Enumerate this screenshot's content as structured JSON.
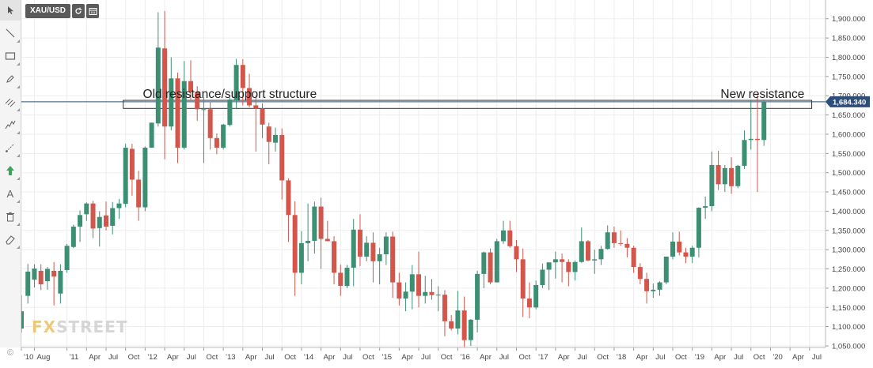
{
  "toolbar": {
    "tools": [
      {
        "name": "cursor-icon",
        "active": true
      },
      {
        "name": "line-icon"
      },
      {
        "name": "rectangle-icon"
      },
      {
        "name": "pencil-icon"
      },
      {
        "name": "parallel-channel-icon"
      },
      {
        "name": "pitchfork-icon"
      },
      {
        "name": "ray-icon"
      },
      {
        "name": "arrow-up-icon"
      },
      {
        "name": "text-icon"
      },
      {
        "name": "trash-icon"
      },
      {
        "name": "eraser-icon"
      }
    ]
  },
  "header": {
    "symbol": "XAU/USD"
  },
  "watermark": {
    "fx": "FX",
    "street": "STREET"
  },
  "copyright": "©",
  "colors": {
    "up": "#3d8f74",
    "down": "#d2564b",
    "grid": "#ededed",
    "price_tag": "#2d4e7a",
    "annotation": "#222222"
  },
  "chart_data": {
    "type": "candlestick",
    "interval": "monthly",
    "ylim": [
      1050,
      1920
    ],
    "y_ticks": [
      1050,
      1100,
      1150,
      1200,
      1250,
      1300,
      1350,
      1400,
      1450,
      1500,
      1550,
      1600,
      1650,
      1700,
      1750,
      1800,
      1850,
      1900
    ],
    "y_tick_labels": [
      "1,050.000",
      "1,100.000",
      "1,150.000",
      "1,200.000",
      "1,250.000",
      "1,300.000",
      "1,350.000",
      "1,400.000",
      "1,450.000",
      "1,500.000",
      "1,550.000",
      "1,600.000",
      "1,650.000",
      "1,700.000",
      "1,750.000",
      "1,800.000",
      "1,850.000",
      "1,900.000"
    ],
    "x_labels": [
      {
        "label": "'10",
        "index": 0
      },
      {
        "label": "Aug",
        "index": 2
      },
      {
        "label": "'11",
        "index": 7
      },
      {
        "label": "Apr",
        "index": 10
      },
      {
        "label": "Jul",
        "index": 13
      },
      {
        "label": "Oct",
        "index": 16
      },
      {
        "label": "'12",
        "index": 19
      },
      {
        "label": "Apr",
        "index": 22
      },
      {
        "label": "Jul",
        "index": 25
      },
      {
        "label": "Oct",
        "index": 28
      },
      {
        "label": "'13",
        "index": 31
      },
      {
        "label": "Apr",
        "index": 34
      },
      {
        "label": "Jul",
        "index": 37
      },
      {
        "label": "Oct",
        "index": 40
      },
      {
        "label": "'14",
        "index": 43
      },
      {
        "label": "Apr",
        "index": 46
      },
      {
        "label": "Jul",
        "index": 49
      },
      {
        "label": "Oct",
        "index": 52
      },
      {
        "label": "'15",
        "index": 55
      },
      {
        "label": "Apr",
        "index": 58
      },
      {
        "label": "Jul",
        "index": 61
      },
      {
        "label": "Oct",
        "index": 64
      },
      {
        "label": "'16",
        "index": 67
      },
      {
        "label": "Apr",
        "index": 70
      },
      {
        "label": "Jul",
        "index": 73
      },
      {
        "label": "Oct",
        "index": 76
      },
      {
        "label": "'17",
        "index": 79
      },
      {
        "label": "Apr",
        "index": 82
      },
      {
        "label": "Jul",
        "index": 85
      },
      {
        "label": "Oct",
        "index": 88
      },
      {
        "label": "'18",
        "index": 91
      },
      {
        "label": "Apr",
        "index": 94
      },
      {
        "label": "Jul",
        "index": 97
      },
      {
        "label": "Oct",
        "index": 100
      },
      {
        "label": "'19",
        "index": 103
      },
      {
        "label": "Apr",
        "index": 106
      },
      {
        "label": "Jul",
        "index": 109
      },
      {
        "label": "Oct",
        "index": 112
      },
      {
        "label": "'20",
        "index": 115
      },
      {
        "label": "Apr",
        "index": 118
      },
      {
        "label": "Jul",
        "index": 121
      }
    ],
    "last_price": 1684.34,
    "last_price_label": "1,684.340",
    "zone": {
      "from_index": 16,
      "to_index": 120,
      "low": 1667,
      "high": 1688
    },
    "annotations": [
      {
        "text": "Old resistance/support structure",
        "index": 32,
        "y": 1705,
        "anchor": "middle"
      },
      {
        "text": "New resistance",
        "index": 119,
        "y": 1705,
        "anchor": "end"
      }
    ],
    "candles": [
      [
        1095,
        1140,
        1085,
        1182
      ],
      [
        1180,
        1243,
        1160,
        1263
      ],
      [
        1222,
        1251,
        1202,
        1262
      ],
      [
        1245,
        1210,
        1195,
        1262
      ],
      [
        1218,
        1250,
        1196,
        1255
      ],
      [
        1245,
        1230,
        1155,
        1268
      ],
      [
        1186,
        1245,
        1160,
        1262
      ],
      [
        1247,
        1310,
        1240,
        1315
      ],
      [
        1307,
        1360,
        1304,
        1365
      ],
      [
        1360,
        1390,
        1320,
        1402
      ],
      [
        1392,
        1420,
        1375,
        1423
      ],
      [
        1420,
        1355,
        1330,
        1427
      ],
      [
        1356,
        1385,
        1308,
        1400
      ],
      [
        1389,
        1360,
        1350,
        1425
      ],
      [
        1362,
        1408,
        1340,
        1424
      ],
      [
        1408,
        1420,
        1380,
        1432
      ],
      [
        1419,
        1565,
        1410,
        1575
      ],
      [
        1562,
        1482,
        1440,
        1575
      ],
      [
        1482,
        1410,
        1375,
        1505
      ],
      [
        1410,
        1565,
        1400,
        1568
      ],
      [
        1565,
        1630,
        1565,
        1630
      ],
      [
        1628,
        1825,
        1620,
        1917
      ],
      [
        1823,
        1620,
        1535,
        1920
      ],
      [
        1620,
        1745,
        1610,
        1800
      ],
      [
        1745,
        1565,
        1525,
        1760
      ],
      [
        1565,
        1738,
        1560,
        1790
      ],
      [
        1738,
        1710,
        1690,
        1792
      ],
      [
        1710,
        1665,
        1635,
        1725
      ],
      [
        1665,
        1665,
        1525,
        1695
      ],
      [
        1665,
        1590,
        1560,
        1685
      ],
      [
        1590,
        1565,
        1548,
        1602
      ],
      [
        1565,
        1625,
        1560,
        1627
      ],
      [
        1624,
        1690,
        1620,
        1695
      ],
      [
        1688,
        1780,
        1665,
        1796
      ],
      [
        1780,
        1720,
        1675,
        1795
      ],
      [
        1720,
        1675,
        1670,
        1757
      ],
      [
        1675,
        1667,
        1555,
        1700
      ],
      [
        1667,
        1625,
        1590,
        1680
      ],
      [
        1620,
        1580,
        1522,
        1630
      ],
      [
        1578,
        1598,
        1555,
        1617
      ],
      [
        1598,
        1480,
        1430,
        1615
      ],
      [
        1480,
        1390,
        1320,
        1485
      ],
      [
        1390,
        1240,
        1180,
        1426
      ],
      [
        1240,
        1317,
        1210,
        1348
      ],
      [
        1317,
        1323,
        1270,
        1420
      ],
      [
        1323,
        1412,
        1290,
        1425
      ],
      [
        1412,
        1328,
        1250,
        1435
      ],
      [
        1328,
        1322,
        1325,
        1375
      ],
      [
        1322,
        1240,
        1210,
        1335
      ],
      [
        1240,
        1206,
        1180,
        1261
      ],
      [
        1206,
        1253,
        1200,
        1260
      ],
      [
        1253,
        1352,
        1205,
        1380
      ],
      [
        1352,
        1282,
        1257,
        1392
      ],
      [
        1282,
        1318,
        1270,
        1335
      ],
      [
        1318,
        1270,
        1215,
        1345
      ],
      [
        1270,
        1288,
        1210,
        1305
      ],
      [
        1288,
        1334,
        1260,
        1345
      ],
      [
        1334,
        1215,
        1175,
        1347
      ],
      [
        1215,
        1173,
        1155,
        1240
      ],
      [
        1173,
        1191,
        1140,
        1215
      ],
      [
        1191,
        1236,
        1145,
        1260
      ],
      [
        1236,
        1180,
        1150,
        1295
      ],
      [
        1180,
        1190,
        1160,
        1232
      ],
      [
        1190,
        1182,
        1170,
        1224
      ],
      [
        1182,
        1183,
        1140,
        1205
      ],
      [
        1183,
        1114,
        1075,
        1195
      ],
      [
        1114,
        1095,
        1090,
        1130
      ],
      [
        1095,
        1142,
        1080,
        1193
      ],
      [
        1142,
        1065,
        1045,
        1178
      ],
      [
        1065,
        1118,
        1050,
        1120
      ],
      [
        1118,
        1237,
        1085,
        1245
      ],
      [
        1237,
        1293,
        1200,
        1295
      ],
      [
        1293,
        1215,
        1210,
        1303
      ],
      [
        1215,
        1322,
        1215,
        1328
      ],
      [
        1322,
        1350,
        1315,
        1375
      ],
      [
        1350,
        1309,
        1305,
        1375
      ],
      [
        1309,
        1275,
        1242,
        1325
      ],
      [
        1275,
        1173,
        1125,
        1303
      ],
      [
        1173,
        1150,
        1122,
        1215
      ],
      [
        1150,
        1208,
        1145,
        1220
      ],
      [
        1208,
        1248,
        1200,
        1264
      ],
      [
        1248,
        1267,
        1195,
        1263
      ],
      [
        1267,
        1275,
        1225,
        1295
      ],
      [
        1275,
        1268,
        1215,
        1290
      ],
      [
        1268,
        1242,
        1205,
        1275
      ],
      [
        1242,
        1268,
        1220,
        1272
      ],
      [
        1268,
        1322,
        1266,
        1358
      ],
      [
        1322,
        1272,
        1270,
        1325
      ],
      [
        1272,
        1275,
        1237,
        1300
      ],
      [
        1275,
        1302,
        1260,
        1310
      ],
      [
        1302,
        1345,
        1300,
        1363
      ],
      [
        1345,
        1317,
        1305,
        1360
      ],
      [
        1317,
        1315,
        1310,
        1350
      ],
      [
        1315,
        1305,
        1280,
        1330
      ],
      [
        1305,
        1255,
        1240,
        1310
      ],
      [
        1255,
        1224,
        1210,
        1265
      ],
      [
        1224,
        1192,
        1160,
        1240
      ],
      [
        1192,
        1196,
        1175,
        1212
      ],
      [
        1196,
        1215,
        1180,
        1218
      ],
      [
        1215,
        1282,
        1210,
        1282
      ],
      [
        1282,
        1321,
        1275,
        1345
      ],
      [
        1321,
        1293,
        1285,
        1347
      ],
      [
        1293,
        1282,
        1265,
        1305
      ],
      [
        1282,
        1305,
        1265,
        1310
      ],
      [
        1305,
        1409,
        1280,
        1410
      ],
      [
        1409,
        1413,
        1380,
        1438
      ],
      [
        1413,
        1520,
        1400,
        1555
      ],
      [
        1520,
        1470,
        1455,
        1557
      ],
      [
        1470,
        1512,
        1450,
        1520
      ],
      [
        1512,
        1465,
        1445,
        1540
      ],
      [
        1465,
        1518,
        1460,
        1520
      ],
      [
        1518,
        1585,
        1510,
        1610
      ],
      [
        1585,
        1588,
        1560,
        1690
      ],
      [
        1588,
        1585,
        1450,
        1704
      ],
      [
        1585,
        1684,
        1570,
        1690
      ]
    ]
  }
}
